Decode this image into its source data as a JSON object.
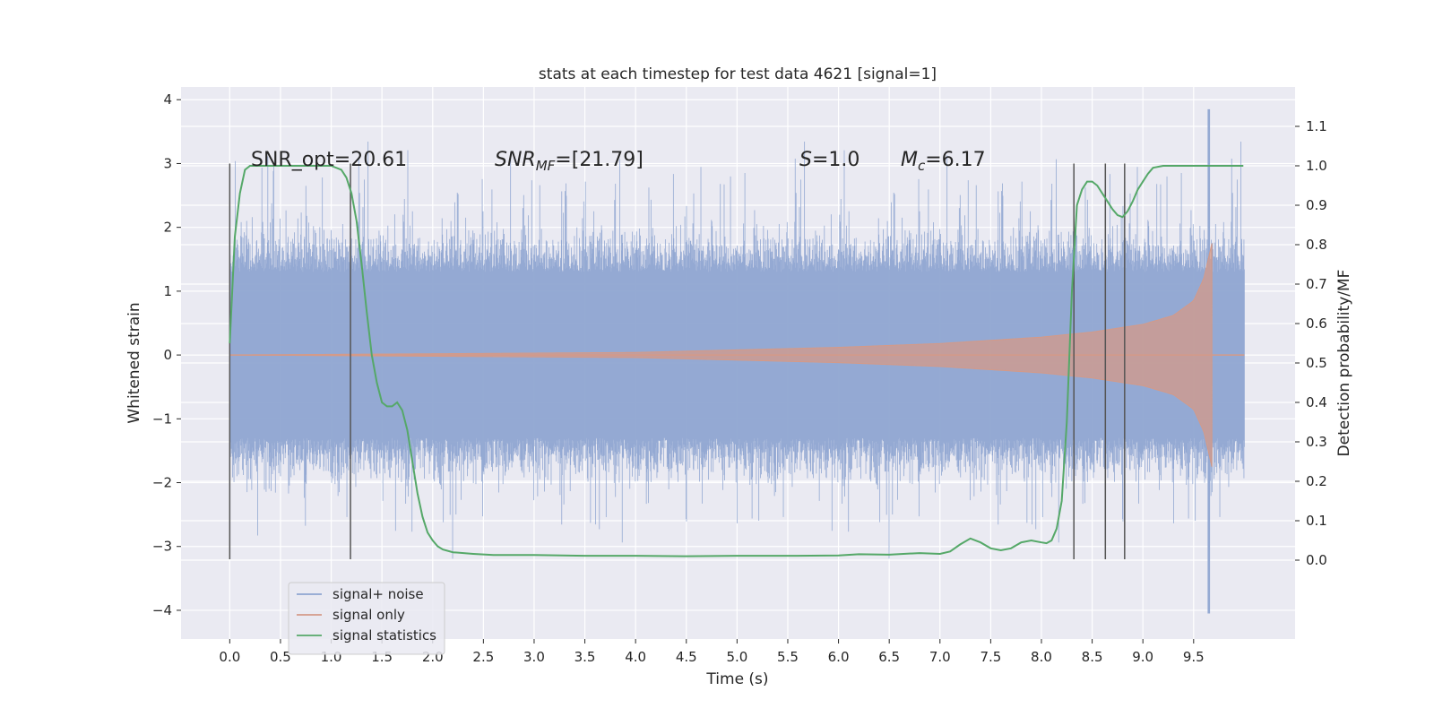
{
  "chart_data": {
    "type": "line",
    "title": "stats at each timestep for test data 4621 [signal=1]",
    "xlabel": "Time (s)",
    "ylabel_left": "Whitened strain",
    "ylabel_right": "Detection probability/MF",
    "xlim": [
      -0.48,
      10.5
    ],
    "ylim_left": [
      -4.45,
      4.2
    ],
    "ylim_right": [
      -0.2,
      1.2
    ],
    "x_ticks": [
      0.0,
      0.5,
      1.0,
      1.5,
      2.0,
      2.5,
      3.0,
      3.5,
      4.0,
      4.5,
      5.0,
      5.5,
      6.0,
      6.5,
      7.0,
      7.5,
      8.0,
      8.5,
      9.0,
      9.5
    ],
    "x_tick_labels": [
      "0.0",
      "0.5",
      "1.0",
      "1.5",
      "2.0",
      "2.5",
      "3.0",
      "3.5",
      "4.0",
      "4.5",
      "5.0",
      "5.5",
      "6.0",
      "6.5",
      "7.0",
      "7.5",
      "8.0",
      "8.5",
      "9.0",
      "9.5"
    ],
    "y_left_ticks": [
      -4,
      -3,
      -2,
      -1,
      0,
      1,
      2,
      3,
      4
    ],
    "y_left_tick_labels": [
      "−4",
      "−3",
      "−2",
      "−1",
      "0",
      "1",
      "2",
      "3",
      "4"
    ],
    "y_right_ticks": [
      0.0,
      0.1,
      0.2,
      0.3,
      0.4,
      0.5,
      0.6,
      0.7,
      0.8,
      0.9,
      1.0,
      1.1
    ],
    "y_right_tick_labels": [
      "0.0",
      "0.1",
      "0.2",
      "0.3",
      "0.4",
      "0.5",
      "0.6",
      "0.7",
      "0.8",
      "0.9",
      "1.0",
      "1.1"
    ],
    "grid": true,
    "legend_position": "lower-left",
    "annotations": {
      "snr_opt": "SNR_opt=20.61",
      "snr_mf_prefix": "SNR",
      "snr_mf_sub": "MF",
      "snr_mf_value": "=[21.79]",
      "s_prefix": "S",
      "s_value": "=1.0",
      "mc_prefix": "M",
      "mc_sub": "c",
      "mc_value": "=6.17"
    },
    "vertical_markers_x": [
      0.0,
      1.19,
      8.32,
      8.63,
      8.82
    ],
    "vertical_markers_range_left": [
      -3.2,
      3.0
    ],
    "series": [
      {
        "name": "signal+ noise",
        "color": "#8fa5d1",
        "axis": "left",
        "x_range": [
          0.0,
          10.0
        ],
        "envelope_core": [
          -1.3,
          1.3
        ],
        "peak_max": 3.85,
        "peak_min": -4.05
      },
      {
        "name": "signal only",
        "color": "#d49a88",
        "axis": "left",
        "x_range": [
          0.0,
          9.68
        ],
        "amplitude_envelope": [
          [
            0.0,
            0.0
          ],
          [
            4.0,
            0.04
          ],
          [
            5.0,
            0.08
          ],
          [
            6.0,
            0.12
          ],
          [
            7.0,
            0.18
          ],
          [
            8.0,
            0.28
          ],
          [
            8.5,
            0.36
          ],
          [
            9.0,
            0.48
          ],
          [
            9.3,
            0.62
          ],
          [
            9.5,
            0.85
          ],
          [
            9.6,
            1.2
          ],
          [
            9.68,
            1.75
          ]
        ]
      },
      {
        "name": "signal statistics",
        "color": "#55a868",
        "axis": "right",
        "x": [
          0.0,
          0.05,
          0.1,
          0.15,
          0.2,
          0.3,
          0.4,
          0.6,
          0.8,
          1.0,
          1.1,
          1.15,
          1.2,
          1.25,
          1.3,
          1.35,
          1.4,
          1.45,
          1.5,
          1.55,
          1.6,
          1.65,
          1.7,
          1.75,
          1.8,
          1.85,
          1.9,
          1.95,
          2.0,
          2.05,
          2.1,
          2.2,
          2.4,
          2.6,
          3.0,
          3.5,
          4.0,
          4.5,
          5.0,
          5.5,
          6.0,
          6.2,
          6.5,
          6.8,
          7.0,
          7.1,
          7.2,
          7.3,
          7.4,
          7.5,
          7.6,
          7.7,
          7.8,
          7.9,
          8.0,
          8.05,
          8.1,
          8.15,
          8.2,
          8.25,
          8.3,
          8.35,
          8.4,
          8.45,
          8.5,
          8.55,
          8.6,
          8.65,
          8.7,
          8.75,
          8.8,
          8.85,
          8.9,
          8.95,
          9.0,
          9.05,
          9.1,
          9.2,
          9.3,
          9.5,
          9.7,
          9.99
        ],
        "values": [
          0.55,
          0.82,
          0.93,
          0.99,
          1.0,
          1.0,
          1.0,
          1.0,
          1.0,
          1.0,
          0.99,
          0.97,
          0.93,
          0.86,
          0.75,
          0.63,
          0.52,
          0.45,
          0.4,
          0.39,
          0.39,
          0.4,
          0.38,
          0.33,
          0.25,
          0.17,
          0.11,
          0.07,
          0.05,
          0.035,
          0.027,
          0.02,
          0.016,
          0.013,
          0.013,
          0.011,
          0.011,
          0.01,
          0.011,
          0.011,
          0.012,
          0.015,
          0.014,
          0.018,
          0.016,
          0.022,
          0.04,
          0.055,
          0.045,
          0.03,
          0.025,
          0.03,
          0.045,
          0.05,
          0.045,
          0.043,
          0.05,
          0.08,
          0.15,
          0.35,
          0.68,
          0.9,
          0.94,
          0.96,
          0.96,
          0.95,
          0.93,
          0.91,
          0.89,
          0.875,
          0.87,
          0.885,
          0.91,
          0.94,
          0.96,
          0.98,
          0.995,
          1.0,
          1.0,
          1.0,
          1.0,
          1.0
        ]
      }
    ]
  }
}
